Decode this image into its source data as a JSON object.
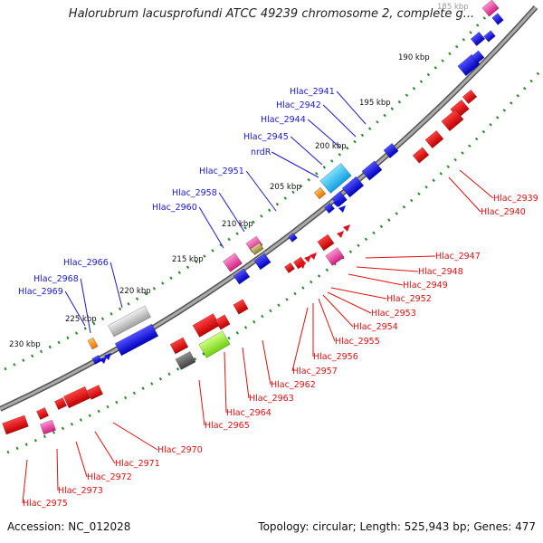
{
  "title": "Halorubrum lacusprofundi ATCC 49239 chromosome 2, complete g...",
  "footer": {
    "accession": "Accession: NC_012028",
    "summary": "Topology: circular; Length: 525,943 bp; Genes: 477"
  },
  "colors": {
    "backbone": "#888888",
    "tick": "#2a8a2a",
    "forward_label": "#1a1ad0",
    "reverse_label": "#e01010",
    "forward_gene": "#1010e0",
    "reverse_gene": "#e01020",
    "rna": "#ff9010",
    "pink": "#ff50b0",
    "cyan": "#20c0f0",
    "lime": "#90f020",
    "gray": "#909090",
    "olive": "#b0a050",
    "lightgray": "#c8c8c8",
    "dark_gray": "#606060"
  },
  "scale_labels": [
    {
      "text": "185 kbp",
      "faded": true
    },
    {
      "text": "190 kbp"
    },
    {
      "text": "195 kbp"
    },
    {
      "text": "200 kbp"
    },
    {
      "text": "205 kbp"
    },
    {
      "text": "210 kbp"
    },
    {
      "text": "215 kbp"
    },
    {
      "text": "220 kbp"
    },
    {
      "text": "225 kbp"
    },
    {
      "text": "230 kbp"
    }
  ],
  "forward_labels": [
    "Hlac_2941",
    "Hlac_2942",
    "Hlac_2944",
    "Hlac_2945",
    "nrdR",
    "Hlac_2951",
    "Hlac_2958",
    "Hlac_2960",
    "Hlac_2966",
    "Hlac_2968",
    "Hlac_2969"
  ],
  "reverse_labels": [
    "Hlac_2939",
    "Hlac_2940",
    "Hlac_2947",
    "Hlac_2948",
    "Hlac_2949",
    "Hlac_2952",
    "Hlac_2953",
    "Hlac_2954",
    "Hlac_2955",
    "Hlac_2956",
    "Hlac_2957",
    "Hlac_2962",
    "Hlac_2963",
    "Hlac_2964",
    "Hlac_2965",
    "Hlac_2970",
    "Hlac_2971",
    "Hlac_2972",
    "Hlac_2973",
    "Hlac_2975"
  ]
}
